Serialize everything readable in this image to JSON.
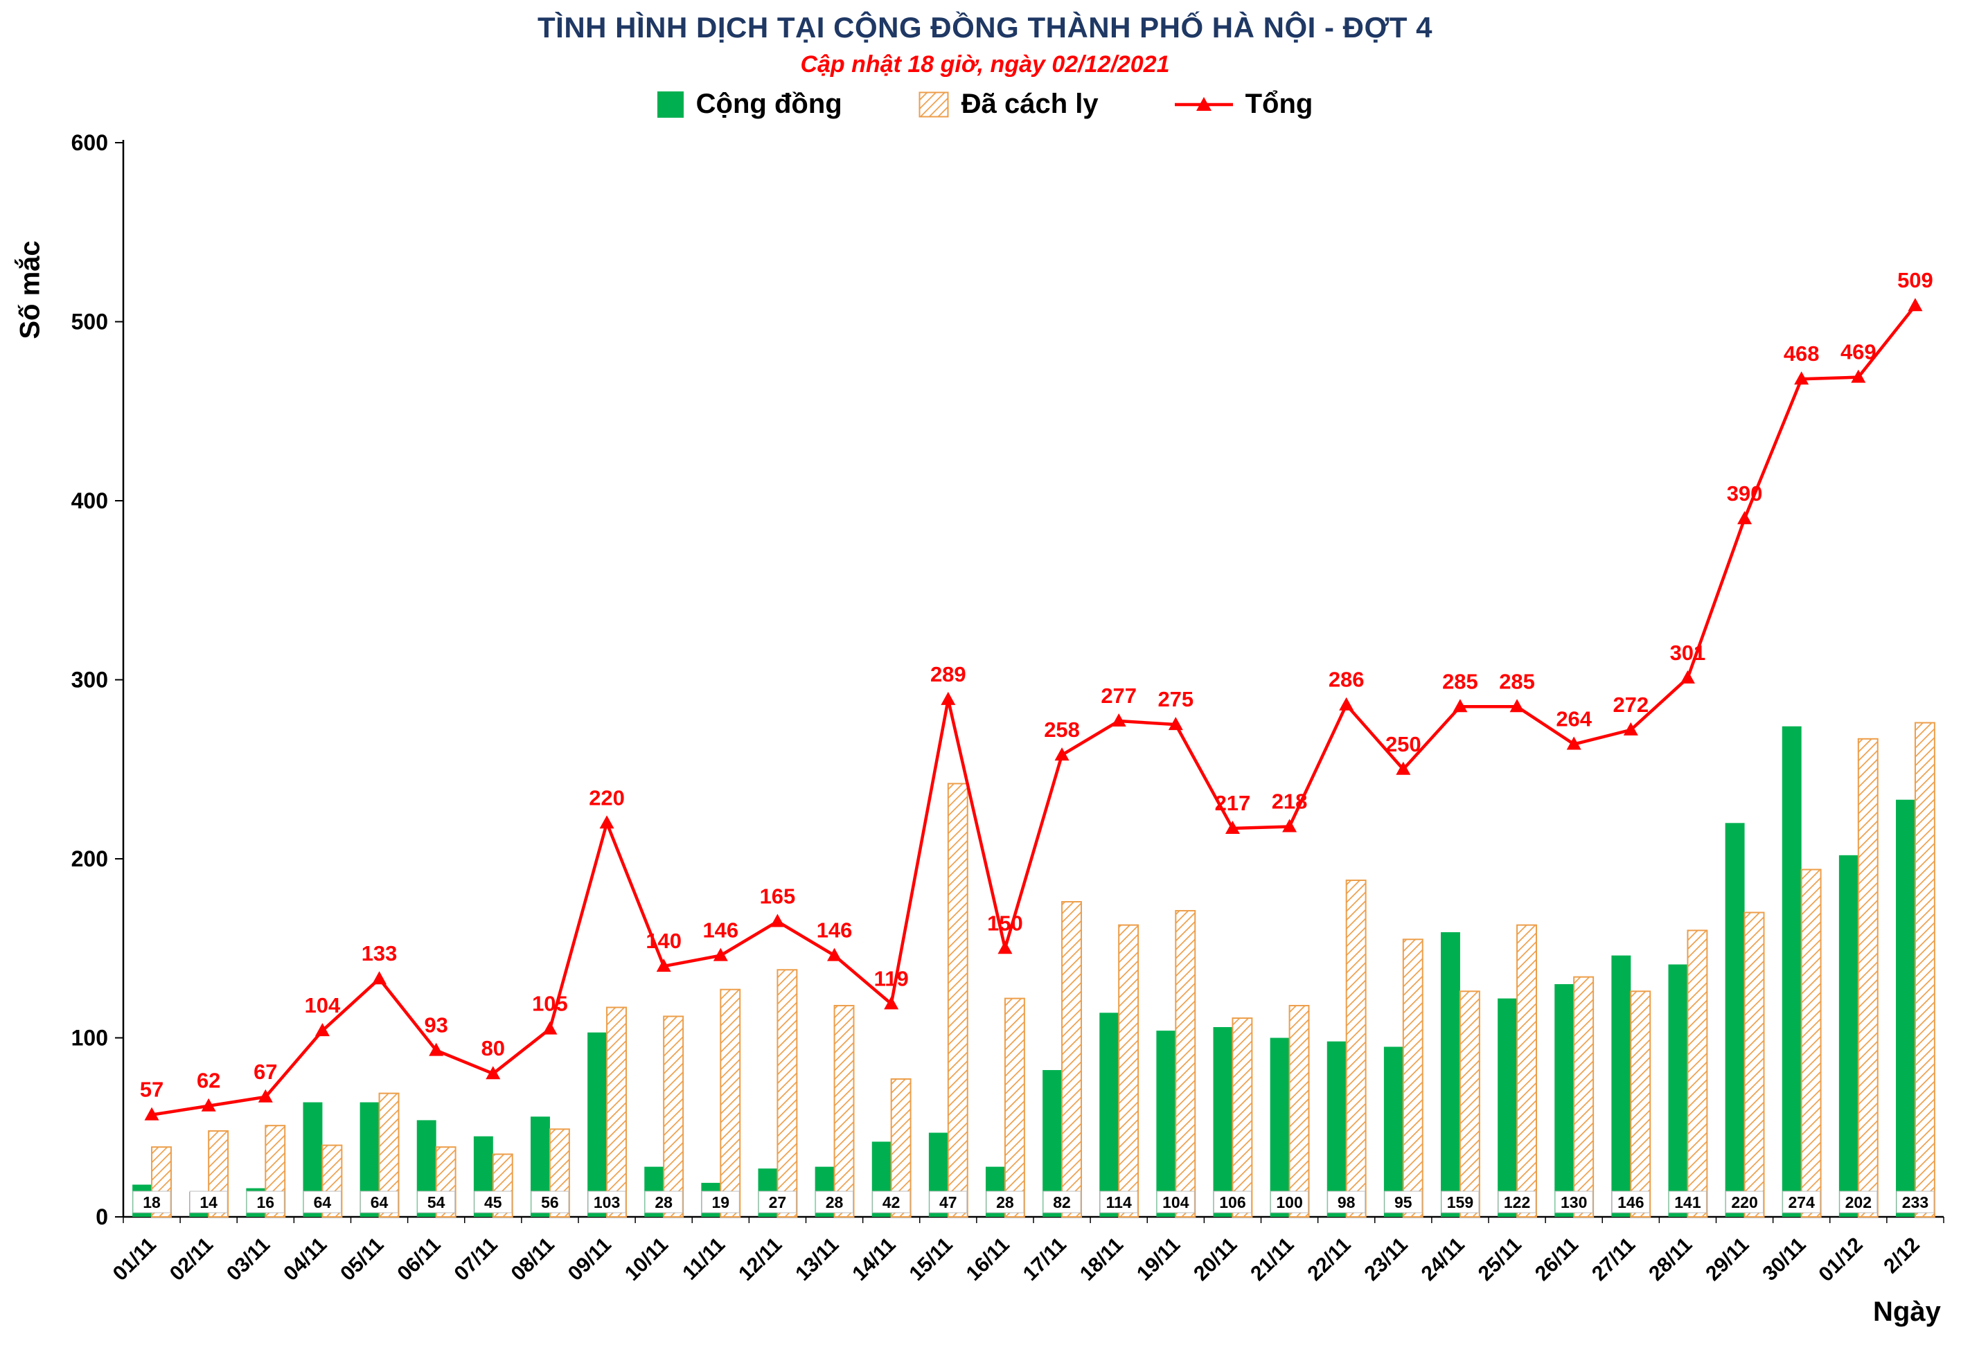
{
  "header": {
    "title": "TÌNH HÌNH DỊCH TẠI CỘNG ĐỒNG THÀNH PHỐ HÀ NỘI - ĐỢT 4",
    "title_color": "#1F3864",
    "subtitle": "Cập nhật 18 giờ, ngày 02/12/2021",
    "subtitle_color": "#FF0000"
  },
  "legend": {
    "position": "top",
    "items": [
      {
        "label": "Cộng đồng",
        "marker": "solid-square",
        "color": "#00B050"
      },
      {
        "label": "Đã cách ly",
        "marker": "hatched-square",
        "color": "#ED9E49"
      },
      {
        "label": "Tổng",
        "marker": "line-triangle",
        "color": "#FF0000"
      }
    ]
  },
  "axes": {
    "y_title": "Số mắc",
    "x_title": "Ngày"
  },
  "chart_data": {
    "type": "combo",
    "title": "TÌNH HÌNH DỊCH TẠI CỘNG ĐỒNG THÀNH PHỐ HÀ NỘI - ĐỢT 4",
    "subtitle": "Cập nhật 18 giờ, ngày 02/12/2021",
    "xlabel": "Ngày",
    "ylabel": "Số mắc",
    "ylim": [
      0,
      600
    ],
    "yticks": [
      0,
      100,
      200,
      300,
      400,
      500,
      600
    ],
    "grid": false,
    "legend_position": "top",
    "categories": [
      "01/11",
      "02/11",
      "03/11",
      "04/11",
      "05/11",
      "06/11",
      "07/11",
      "08/11",
      "09/11",
      "10/11",
      "11/11",
      "12/11",
      "13/11",
      "14/11",
      "15/11",
      "16/11",
      "17/11",
      "18/11",
      "19/11",
      "20/11",
      "21/11",
      "22/11",
      "23/11",
      "24/11",
      "25/11",
      "26/11",
      "27/11",
      "28/11",
      "29/11",
      "30/11",
      "01/12",
      "2/12"
    ],
    "series": [
      {
        "name": "Cộng đồng",
        "type": "bar",
        "style": "solid",
        "color": "#00B050",
        "labels": "bottom-boxes",
        "values": [
          18,
          14,
          16,
          64,
          64,
          54,
          45,
          56,
          103,
          28,
          19,
          27,
          28,
          42,
          47,
          28,
          82,
          114,
          104,
          106,
          100,
          98,
          95,
          159,
          122,
          130,
          146,
          141,
          220,
          274,
          202,
          233
        ]
      },
      {
        "name": "Đã cách ly",
        "type": "bar",
        "style": "hatched",
        "color": "#ED9E49",
        "values": [
          39,
          48,
          51,
          40,
          69,
          39,
          35,
          49,
          117,
          112,
          127,
          138,
          118,
          77,
          242,
          122,
          176,
          163,
          171,
          111,
          118,
          188,
          155,
          126,
          163,
          134,
          126,
          160,
          170,
          194,
          267,
          276
        ]
      },
      {
        "name": "Tổng",
        "type": "line",
        "marker": "triangle",
        "color": "#FF0000",
        "labels": "above-points",
        "values": [
          57,
          62,
          67,
          104,
          133,
          93,
          80,
          105,
          220,
          140,
          146,
          165,
          146,
          119,
          289,
          150,
          258,
          277,
          275,
          217,
          218,
          286,
          250,
          285,
          285,
          264,
          272,
          301,
          390,
          468,
          469,
          509
        ]
      }
    ]
  }
}
